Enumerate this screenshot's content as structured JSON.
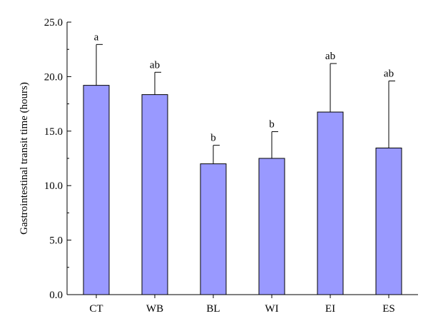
{
  "chart_data": {
    "type": "bar",
    "categories": [
      "CT",
      "WB",
      "BL",
      "WI",
      "EI",
      "ES"
    ],
    "values": [
      19.2,
      18.35,
      12.0,
      12.5,
      16.75,
      13.45
    ],
    "error_upper": [
      22.95,
      20.4,
      13.7,
      14.95,
      21.2,
      19.6
    ],
    "significance": [
      "a",
      "ab",
      "b",
      "b",
      "ab",
      "ab"
    ],
    "title": "",
    "xlabel": "",
    "ylabel": "Gastrointestinal transit time (hours)",
    "ylim": [
      0,
      25
    ],
    "yticks": [
      "0.0",
      "5.0",
      "10.0",
      "15.0",
      "20.0",
      "25.0"
    ],
    "bar_color": "#9999ff",
    "grid": false
  }
}
